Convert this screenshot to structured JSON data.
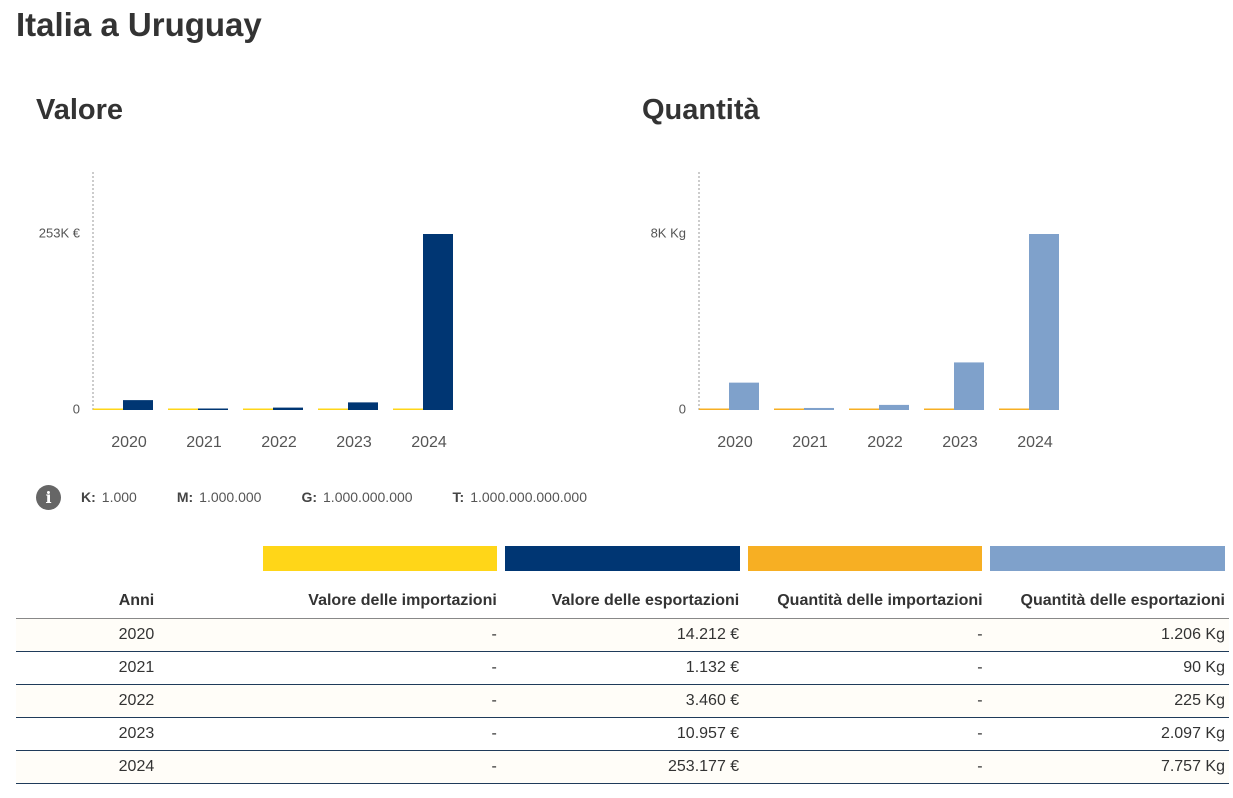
{
  "title": "Italia a Uruguay",
  "legend": {
    "units": [
      {
        "key": "K:",
        "value": "1.000"
      },
      {
        "key": "M:",
        "value": "1.000.000"
      },
      {
        "key": "G:",
        "value": "1.000.000.000"
      },
      {
        "key": "T:",
        "value": "1.000.000.000.000"
      }
    ]
  },
  "colors": {
    "import_value": "#FFD618",
    "export_value": "#003673",
    "import_quantity": "#F7AF23",
    "export_quantity": "#7FA1CB"
  },
  "chart_data": [
    {
      "type": "bar",
      "title": "Valore",
      "categories": [
        "2020",
        "2021",
        "2022",
        "2023",
        "2024"
      ],
      "series": [
        {
          "values": [
            0,
            0,
            0,
            0,
            0
          ],
          "color": "#FFD618"
        },
        {
          "values": [
            14212,
            1132,
            3460,
            10957,
            253177
          ],
          "color": "#003673"
        }
      ],
      "yticks": [
        {
          "value": 0,
          "label": "0"
        },
        {
          "value": 253177,
          "label": "253K €"
        }
      ],
      "ylim": [
        0,
        253177
      ],
      "grid": false
    },
    {
      "type": "bar",
      "title": "Quantità",
      "categories": [
        "2020",
        "2021",
        "2022",
        "2023",
        "2024"
      ],
      "series": [
        {
          "values": [
            0,
            0,
            0,
            0,
            0
          ],
          "color": "#F7AF23"
        },
        {
          "values": [
            1206,
            90,
            225,
            2097,
            7757
          ],
          "color": "#7FA1CB"
        }
      ],
      "yticks": [
        {
          "value": 0,
          "label": "0"
        },
        {
          "value": 7757,
          "label": "8K Kg"
        }
      ],
      "ylim": [
        0,
        7757
      ],
      "grid": false
    }
  ],
  "table": {
    "headers": {
      "year": "Anni",
      "import_value": "Valore delle importazioni",
      "export_value": "Valore delle esportazioni",
      "import_quantity": "Quantità delle importazioni",
      "export_quantity": "Quantità delle esportazioni"
    },
    "rows": [
      {
        "year": "2020",
        "import_value": "-",
        "export_value": "14.212 €",
        "import_quantity": "-",
        "export_quantity": "1.206 Kg"
      },
      {
        "year": "2021",
        "import_value": "-",
        "export_value": "1.132 €",
        "import_quantity": "-",
        "export_quantity": "90 Kg"
      },
      {
        "year": "2022",
        "import_value": "-",
        "export_value": "3.460 €",
        "import_quantity": "-",
        "export_quantity": "225 Kg"
      },
      {
        "year": "2023",
        "import_value": "-",
        "export_value": "10.957 €",
        "import_quantity": "-",
        "export_quantity": "2.097 Kg"
      },
      {
        "year": "2024",
        "import_value": "-",
        "export_value": "253.177 €",
        "import_quantity": "-",
        "export_quantity": "7.757 Kg"
      }
    ]
  }
}
